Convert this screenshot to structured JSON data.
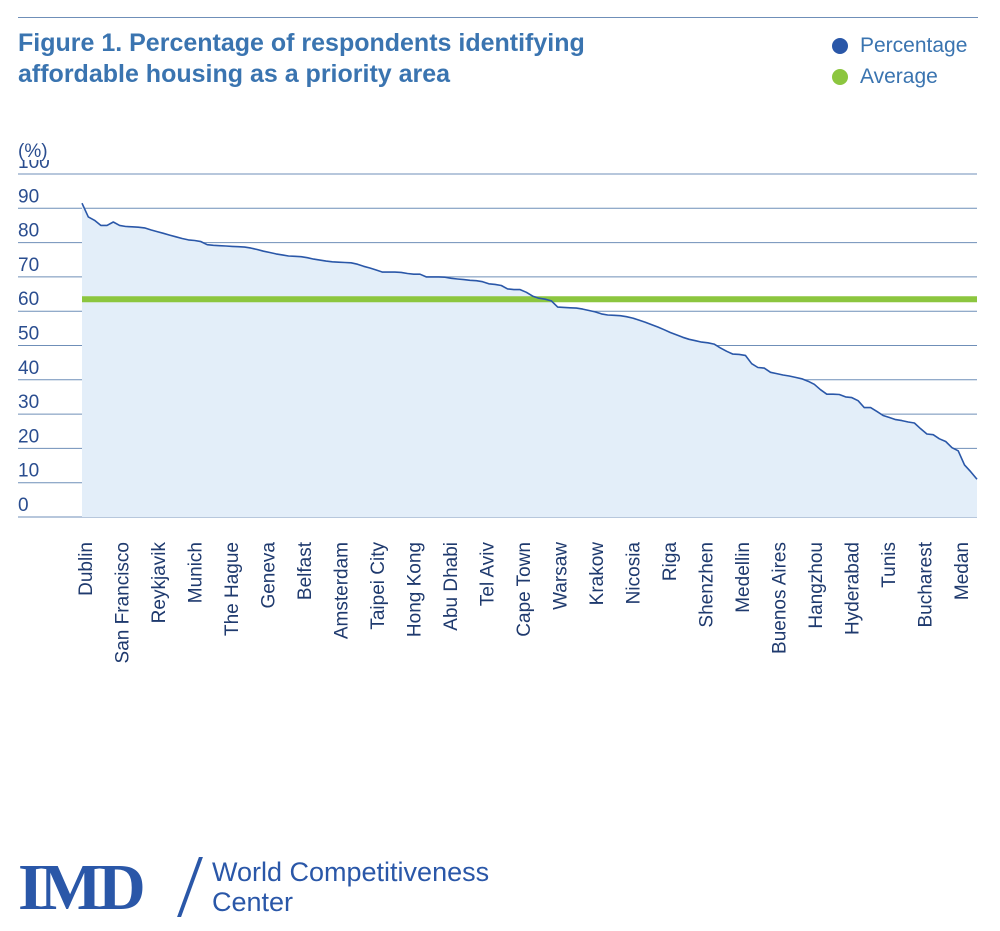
{
  "figure": {
    "title": "Figure 1. Percentage of respondents identifying affordable housing as a priority area"
  },
  "legend": [
    {
      "label": "Percentage",
      "color": "#2a57a8"
    },
    {
      "label": "Average",
      "color": "#8cc63f"
    }
  ],
  "brand": {
    "logo_mark": "IMD",
    "name_line1": "World Competitiveness",
    "name_line2": "Center"
  },
  "chart_data": {
    "type": "area",
    "ylabel": "(%)",
    "ylim": [
      0,
      100
    ],
    "y_ticks": [
      0,
      10,
      20,
      30,
      40,
      50,
      60,
      70,
      80,
      90,
      100
    ],
    "grid": true,
    "legend_position": "top-right",
    "average": 63.5,
    "x_tick_labels": [
      "Dublin",
      "San Francisco",
      "Reykjavik",
      "Munich",
      "The Hague",
      "Geneva",
      "Belfast",
      "Amsterdam",
      "Taipei City",
      "Hong Kong",
      "Abu Dhabi",
      "Tel Aviv",
      "Cape Town",
      "Warsaw",
      "Krakow",
      "Nicosia",
      "Riga",
      "Shenzhen",
      "Medellin",
      "Buenos Aires",
      "Hangzhou",
      "Hyderabad",
      "Tunis",
      "Bucharest",
      "Medan"
    ],
    "series": [
      {
        "name": "Percentage",
        "values": [
          91.5,
          87.5,
          86.5,
          85,
          85,
          86,
          85,
          84.7,
          84.6,
          84.5,
          84.3,
          83.7,
          83.2,
          82.7,
          82.2,
          81.7,
          81.2,
          80.8,
          80.6,
          80.3,
          79.4,
          79.2,
          79.1,
          79,
          78.9,
          78.8,
          78.7,
          78.4,
          78,
          77.5,
          77.1,
          76.7,
          76.4,
          76.1,
          76,
          75.9,
          75.6,
          75.2,
          74.9,
          74.6,
          74.4,
          74.3,
          74.2,
          74.1,
          73.7,
          73.1,
          72.6,
          72,
          71.4,
          71.4,
          71.4,
          71.3,
          71,
          70.8,
          70.8,
          70,
          70,
          70,
          69.9,
          69.6,
          69.4,
          69.2,
          69,
          68.9,
          68.6,
          68,
          67.8,
          67.5,
          66.5,
          66.3,
          66.3,
          65.5,
          64.4,
          63.8,
          63.5,
          63,
          61.2,
          61.1,
          61,
          60.9,
          60.6,
          60.2,
          59.8,
          59.2,
          58.9,
          58.8,
          58.7,
          58.4,
          58,
          57.4,
          56.8,
          56.1,
          55.4,
          54.6,
          53.8,
          53.1,
          52.4,
          51.8,
          51.4,
          51,
          50.8,
          50.4,
          49.3,
          48.3,
          47.5,
          47.4,
          47.1,
          44.7,
          43.6,
          43.4,
          42.2,
          41.8,
          41.4,
          41.1,
          40.7,
          40.3,
          39.6,
          38.7,
          37.1,
          35.8,
          35.8,
          35.7,
          35,
          34.8,
          33.9,
          31.9,
          31.9,
          30.8,
          29.6,
          29,
          28.4,
          28.1,
          27.7,
          27.4,
          25.7,
          24.2,
          24,
          22.8,
          22,
          20.2,
          19.3,
          15.2,
          13.2,
          11
        ]
      }
    ]
  }
}
